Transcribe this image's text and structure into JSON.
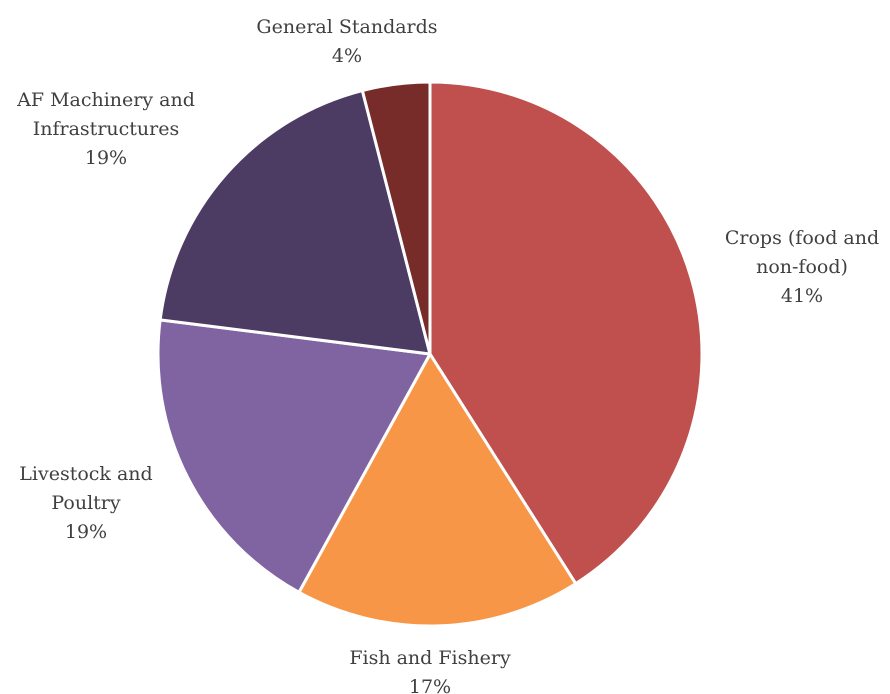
{
  "chart_data": {
    "type": "pie",
    "categories": [
      "Crops (food and non-food)",
      "Fish and Fishery",
      "Livestock and Poultry",
      "AF Machinery and Infrastructures",
      "General Standards"
    ],
    "values": [
      41,
      17,
      19,
      19,
      4
    ],
    "value_labels": [
      "41%",
      "17%",
      "19%",
      "19%",
      "4%"
    ],
    "label_lines": [
      [
        "Crops (food and",
        "non-food)"
      ],
      [
        "Fish and Fishery"
      ],
      [
        "Livestock and",
        "Poultry"
      ],
      [
        "AF Machinery and",
        "Infrastructures"
      ],
      [
        "General Standards"
      ]
    ],
    "colors": [
      "#C0504D",
      "#F79646",
      "#8064A2",
      "#4C3B63",
      "#772C2A"
    ],
    "start_angle_deg": 0,
    "direction": "clockwise",
    "legend": "none",
    "label_position": "outside"
  }
}
